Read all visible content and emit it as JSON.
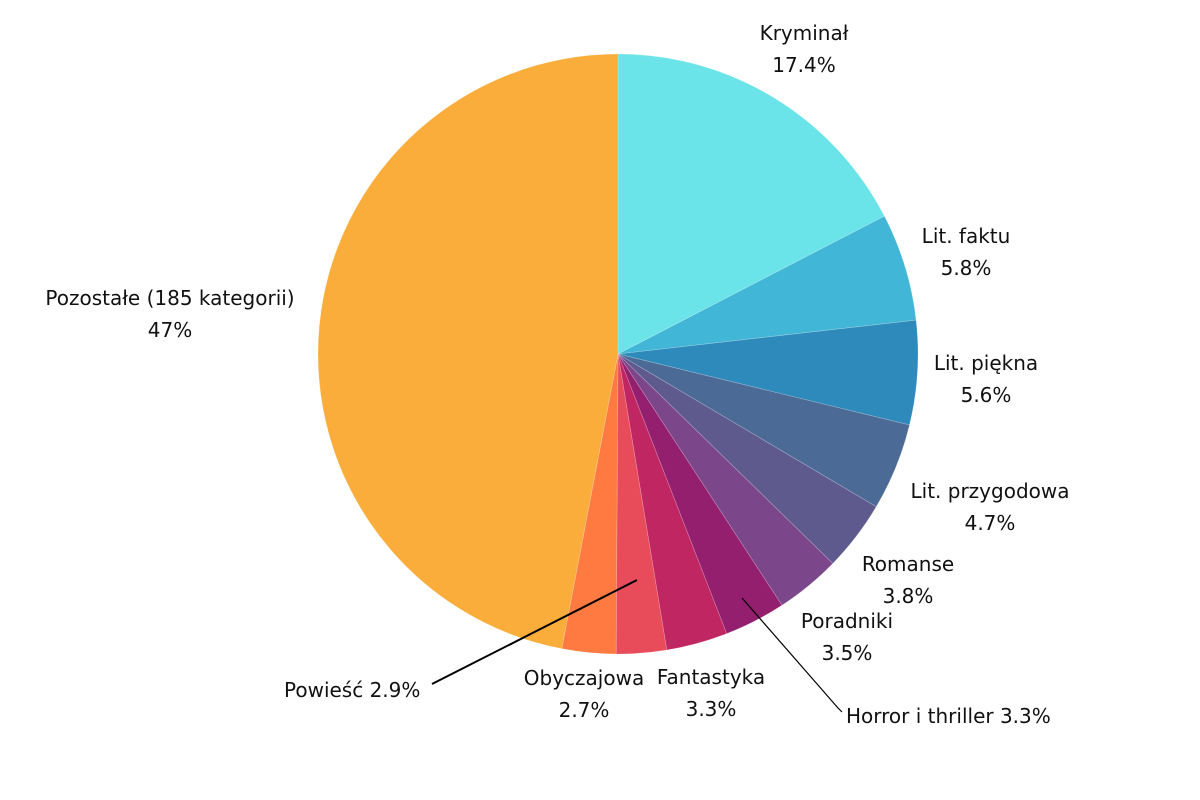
{
  "chart_data": {
    "type": "pie",
    "title": "",
    "start": "top",
    "direction": "clockwise",
    "slices": [
      {
        "label": "Kryminał",
        "value": 17.4,
        "text": "17.4%",
        "color": "#6ae4e8"
      },
      {
        "label": "Lit. faktu",
        "value": 5.8,
        "text": "5.8%",
        "color": "#42b6d6"
      },
      {
        "label": "Lit. piękna",
        "value": 5.6,
        "text": "5.6%",
        "color": "#2d8abb"
      },
      {
        "label": "Lit. przygodowa",
        "value": 4.7,
        "text": "4.7%",
        "color": "#4b6b96"
      },
      {
        "label": "Romanse",
        "value": 3.8,
        "text": "3.8%",
        "color": "#5e5a8e"
      },
      {
        "label": "Poradniki",
        "value": 3.5,
        "text": "3.5%",
        "color": "#7c468a"
      },
      {
        "label": "Horror i thriller",
        "value": 3.3,
        "text": "3.3%",
        "color": "#941f6e"
      },
      {
        "label": "Fantastyka",
        "value": 3.3,
        "text": "3.3%",
        "color": "#c02662"
      },
      {
        "label": "Obyczajowa",
        "value": 2.7,
        "text": "2.7%",
        "color": "#e84b5a"
      },
      {
        "label": "Powieść",
        "value": 2.9,
        "text": "2.9%",
        "color": "#fe7a41"
      },
      {
        "label": "Pozostałe (185 kategorii)",
        "value": 47,
        "text": "47%",
        "color": "#fbad3c"
      }
    ]
  }
}
